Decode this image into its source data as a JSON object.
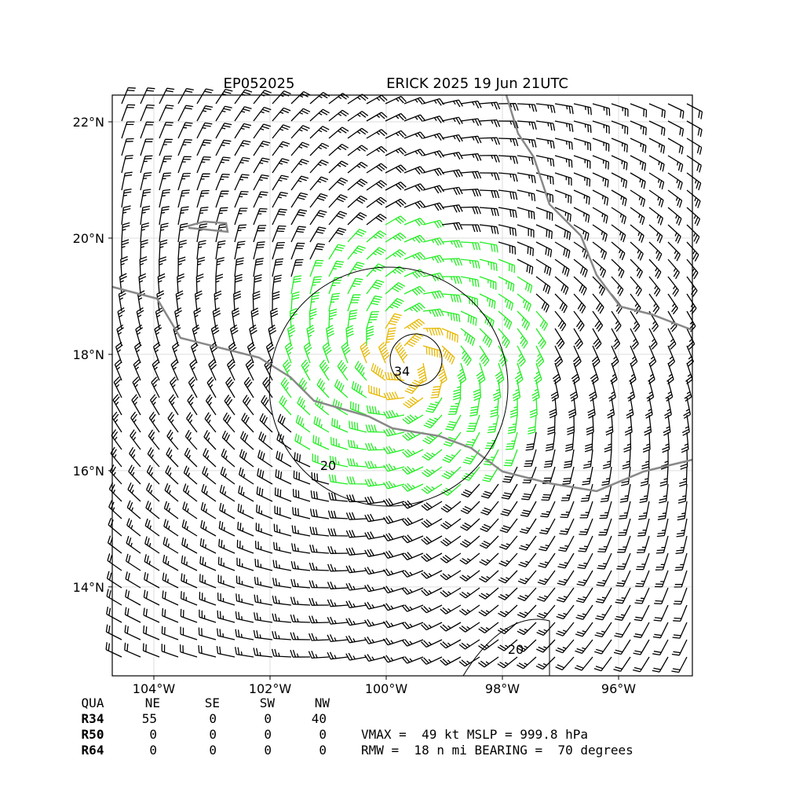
{
  "map": {
    "title_left": "EP052025",
    "title_right": "ERICK 2025 19 Jun 21UTC",
    "xlim": [
      -104.716,
      -94.73
    ],
    "ylim": [
      12.47,
      22.46
    ],
    "xticks": [
      {
        "value": -104,
        "label": "104°W"
      },
      {
        "value": -102,
        "label": "102°W"
      },
      {
        "value": -100,
        "label": "100°W"
      },
      {
        "value": -98,
        "label": "98°W"
      },
      {
        "value": -96,
        "label": "96°W"
      }
    ],
    "yticks": [
      {
        "value": 14,
        "label": "14°N"
      },
      {
        "value": 16,
        "label": "16°N"
      },
      {
        "value": 18,
        "label": "18°N"
      },
      {
        "value": 20,
        "label": "20°N"
      },
      {
        "value": 22,
        "label": "22°N"
      }
    ],
    "contour_labels": [
      "34",
      "20",
      "20"
    ],
    "table": {
      "header": [
        "QUA",
        "NE",
        "SE",
        "SW",
        "NW"
      ],
      "rows": [
        [
          "R34",
          "55",
          "0",
          "0",
          "40"
        ],
        [
          "R50",
          "0",
          "0",
          "0",
          "0"
        ],
        [
          "R64",
          "0",
          "0",
          "0",
          "0"
        ]
      ]
    },
    "info": [
      "VMAX =  49 kt MSLP = 999.8 hPa",
      "RMW =  18 n mi BEARING =  70 degrees"
    ]
  }
}
